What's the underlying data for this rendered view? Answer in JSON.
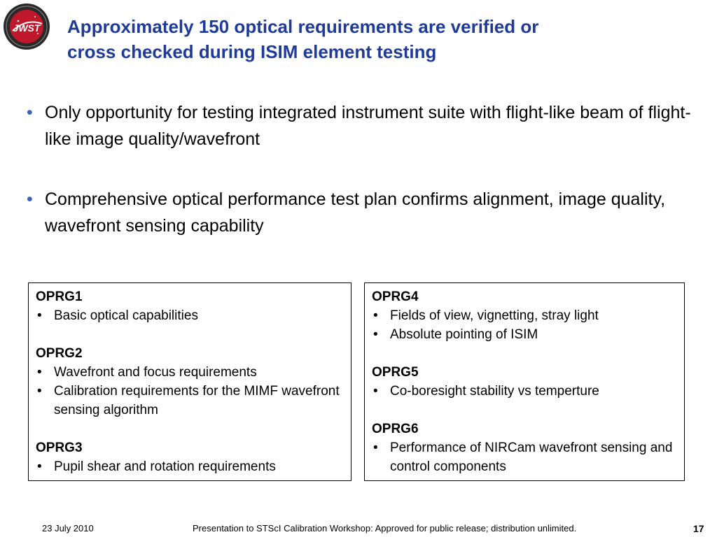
{
  "logo": {
    "text": "JWST",
    "colors": {
      "outer": "#2a2a2a",
      "inner": "#c0182b",
      "text": "#ffffff"
    }
  },
  "title": {
    "line1": "Approximately 150 optical requirements are verified or",
    "line2": "cross checked during ISIM element testing"
  },
  "bullets": [
    {
      "text": "Only opportunity for testing integrated instrument suite with flight-like beam of flight-like image quality/wavefront"
    },
    {
      "text": "Comprehensive optical performance test plan confirms alignment, image quality, wavefront sensing capability"
    }
  ],
  "boxes": {
    "left": [
      {
        "title": "OPRG1",
        "items": [
          "Basic optical capabilities"
        ]
      },
      {
        "title": "OPRG2",
        "items": [
          "Wavefront and focus requirements",
          "Calibration requirements for the MIMF wavefront sensing algorithm"
        ]
      },
      {
        "title": "OPRG3",
        "items": [
          "Pupil shear and rotation requirements"
        ]
      }
    ],
    "right": [
      {
        "title": "OPRG4",
        "items": [
          "Fields of view, vignetting, stray light",
          "Absolute pointing of ISIM"
        ]
      },
      {
        "title": "OPRG5",
        "items": [
          "Co-boresight stability vs temperture"
        ]
      },
      {
        "title": "OPRG6",
        "items": [
          "Performance of NIRCam wavefront sensing and control components"
        ]
      }
    ]
  },
  "footer": {
    "date": "23 July 2010",
    "note": "Presentation to STScI Calibration Workshop: Approved for public release; distribution unlimited.",
    "page": "17"
  },
  "colors": {
    "title": "#1f3b99",
    "bullet_dot": "#3a63b8"
  }
}
